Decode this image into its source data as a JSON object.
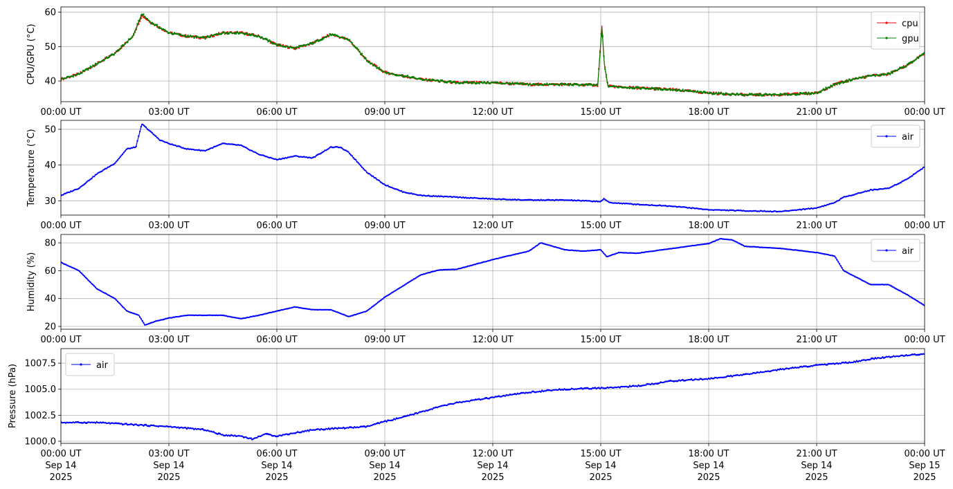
{
  "figure": {
    "x_tick_labels": [
      "00:00 UT",
      "03:00 UT",
      "06:00 UT",
      "09:00 UT",
      "12:00 UT",
      "15:00 UT",
      "18:00 UT",
      "21:00 UT",
      "00:00 UT"
    ],
    "x_date_labels": [
      [
        "Sep 14",
        "2025"
      ],
      [
        "Sep 14",
        "2025"
      ],
      [
        "Sep 14",
        "2025"
      ],
      [
        "Sep 14",
        "2025"
      ],
      [
        "Sep 14",
        "2025"
      ],
      [
        "Sep 14",
        "2025"
      ],
      [
        "Sep 14",
        "2025"
      ],
      [
        "Sep 14",
        "2025"
      ],
      [
        "Sep 15",
        "2025"
      ]
    ]
  },
  "chart_data": [
    {
      "type": "line",
      "ylabel": "CPU/GPU (°C)",
      "xlim": [
        "2025-09-14T00:00Z",
        "2025-09-15T00:00Z"
      ],
      "ylim": [
        34,
        61.5
      ],
      "yticks": [
        40,
        50,
        60
      ],
      "ytick_labels": [
        "40",
        "50",
        "60"
      ],
      "grid": true,
      "legend": "top-right",
      "series": [
        {
          "name": "cpu",
          "color": "#ff0000",
          "x": [
            "00:00",
            "00:30",
            "01:00",
            "01:30",
            "02:00",
            "02:15",
            "02:30",
            "03:00",
            "03:30",
            "04:00",
            "04:30",
            "05:00",
            "05:30",
            "06:00",
            "06:30",
            "07:00",
            "07:30",
            "08:00",
            "08:30",
            "09:00",
            "09:30",
            "10:00",
            "11:00",
            "12:00",
            "13:00",
            "14:00",
            "14:55",
            "15:02",
            "15:06",
            "15:12",
            "16:00",
            "17:00",
            "18:00",
            "19:00",
            "20:00",
            "21:00",
            "21:30",
            "22:00",
            "22:30",
            "23:00",
            "23:30",
            "24:00"
          ],
          "y": [
            40.5,
            42,
            45,
            48,
            53,
            59,
            57,
            54,
            53,
            52.5,
            54,
            54,
            53,
            50.5,
            49.5,
            51,
            53.5,
            52,
            46,
            42.5,
            41.5,
            40.5,
            39.5,
            39.5,
            39,
            39,
            38.8,
            56,
            45,
            38.5,
            38,
            37.5,
            36.5,
            36,
            36,
            36.5,
            39,
            40.5,
            41.5,
            42,
            44.5,
            48
          ]
        },
        {
          "name": "gpu",
          "color": "#008000",
          "x": [
            "00:00",
            "00:30",
            "01:00",
            "01:30",
            "02:00",
            "02:15",
            "02:30",
            "03:00",
            "03:30",
            "04:00",
            "04:30",
            "05:00",
            "05:30",
            "06:00",
            "06:30",
            "07:00",
            "07:30",
            "08:00",
            "08:30",
            "09:00",
            "09:30",
            "10:00",
            "11:00",
            "12:00",
            "13:00",
            "14:00",
            "14:55",
            "15:02",
            "15:06",
            "15:12",
            "16:00",
            "17:00",
            "18:00",
            "19:00",
            "20:00",
            "21:00",
            "21:30",
            "22:00",
            "22:30",
            "23:00",
            "23:30",
            "24:00"
          ],
          "y": [
            40.5,
            42,
            45,
            48,
            53,
            59.5,
            57,
            54,
            53,
            52.5,
            54,
            54,
            53,
            50.5,
            49.5,
            51,
            53.5,
            52,
            46,
            42.5,
            41.5,
            40.5,
            39.5,
            39.5,
            39,
            39,
            38.8,
            55.5,
            45,
            38.5,
            38,
            37.5,
            36.5,
            36,
            36,
            36.5,
            39,
            40.5,
            41.5,
            42,
            44.5,
            48
          ]
        }
      ]
    },
    {
      "type": "line",
      "ylabel": "Temperature (°C)",
      "xlim": [
        "2025-09-14T00:00Z",
        "2025-09-15T00:00Z"
      ],
      "ylim": [
        26,
        52.5
      ],
      "yticks": [
        30,
        40,
        50
      ],
      "ytick_labels": [
        "30",
        "40",
        "50"
      ],
      "grid": true,
      "legend": "top-right",
      "series": [
        {
          "name": "air",
          "color": "#0000ff",
          "x": [
            "00:00",
            "00:30",
            "01:00",
            "01:30",
            "01:50",
            "02:05",
            "02:15",
            "02:45",
            "03:00",
            "03:30",
            "04:00",
            "04:30",
            "05:00",
            "05:30",
            "06:00",
            "06:30",
            "07:00",
            "07:30",
            "07:45",
            "08:00",
            "08:30",
            "09:00",
            "09:30",
            "10:00",
            "11:00",
            "12:00",
            "13:00",
            "14:00",
            "15:00",
            "15:05",
            "15:15",
            "16:00",
            "17:00",
            "18:00",
            "19:00",
            "20:00",
            "21:00",
            "21:30",
            "21:45",
            "22:30",
            "23:00",
            "23:30",
            "24:00"
          ],
          "y": [
            31.5,
            33.5,
            37.5,
            40.5,
            44.5,
            45,
            51.5,
            47,
            46,
            44.5,
            44,
            46,
            45.5,
            43,
            41.5,
            42.5,
            42,
            45,
            45,
            43.5,
            38,
            34.5,
            32.5,
            31.5,
            31,
            30.5,
            30.2,
            30.2,
            29.8,
            30.5,
            29.5,
            29,
            28.5,
            27.5,
            27.2,
            27,
            28,
            29.5,
            31,
            33,
            33.5,
            36,
            39.5
          ]
        }
      ]
    },
    {
      "type": "line",
      "ylabel": "Humidity (%)",
      "xlim": [
        "2025-09-14T00:00Z",
        "2025-09-15T00:00Z"
      ],
      "ylim": [
        18,
        86
      ],
      "yticks": [
        20,
        40,
        60,
        80
      ],
      "ytick_labels": [
        "20",
        "40",
        "60",
        "80"
      ],
      "grid": true,
      "legend": "top-right",
      "series": [
        {
          "name": "air",
          "color": "#0000ff",
          "x": [
            "00:00",
            "00:30",
            "01:00",
            "01:30",
            "01:50",
            "02:10",
            "02:20",
            "02:40",
            "03:00",
            "03:30",
            "04:00",
            "04:30",
            "05:00",
            "05:30",
            "06:00",
            "06:30",
            "07:00",
            "07:30",
            "08:00",
            "08:30",
            "09:00",
            "09:30",
            "10:00",
            "10:30",
            "11:00",
            "12:00",
            "13:00",
            "13:20",
            "14:00",
            "14:30",
            "15:00",
            "15:10",
            "15:30",
            "16:00",
            "17:00",
            "18:00",
            "18:20",
            "18:40",
            "19:00",
            "20:00",
            "21:00",
            "21:30",
            "21:45",
            "22:30",
            "23:00",
            "23:30",
            "24:00"
          ],
          "y": [
            66,
            60,
            47,
            40,
            31,
            28,
            21,
            24,
            26,
            28,
            28,
            28,
            25.5,
            28,
            31,
            34,
            32,
            32,
            27,
            31,
            41,
            49,
            57,
            60.5,
            61,
            68,
            74,
            80,
            75,
            74,
            75,
            70,
            73,
            72.5,
            76,
            79.5,
            83,
            82,
            77.5,
            76,
            73,
            70.5,
            60,
            50,
            50,
            43,
            35
          ]
        }
      ]
    },
    {
      "type": "line",
      "ylabel": "Pressure (hPa)",
      "xlim": [
        "2025-09-14T00:00Z",
        "2025-09-15T00:00Z"
      ],
      "ylim": [
        999.8,
        1008.9
      ],
      "yticks": [
        1000.0,
        1002.5,
        1005.0,
        1007.5
      ],
      "ytick_labels": [
        "1000.0",
        "1002.5",
        "1005.0",
        "1007.5"
      ],
      "grid": true,
      "legend": "top-left",
      "series": [
        {
          "name": "air",
          "color": "#0000ff",
          "x": [
            "00:00",
            "01:00",
            "02:00",
            "03:00",
            "04:00",
            "04:30",
            "05:00",
            "05:20",
            "05:40",
            "06:00",
            "06:30",
            "07:00",
            "07:30",
            "08:00",
            "08:30",
            "09:00",
            "09:30",
            "10:00",
            "10:30",
            "11:00",
            "12:00",
            "13:00",
            "14:00",
            "15:00",
            "16:00",
            "17:00",
            "18:00",
            "19:00",
            "20:00",
            "21:00",
            "22:00",
            "22:30",
            "23:00",
            "24:00"
          ],
          "y": [
            1001.8,
            1001.8,
            1001.6,
            1001.4,
            1001.1,
            1000.6,
            1000.5,
            1000.2,
            1000.7,
            1000.5,
            1000.8,
            1001.1,
            1001.2,
            1001.3,
            1001.4,
            1001.9,
            1002.3,
            1002.8,
            1003.3,
            1003.7,
            1004.2,
            1004.7,
            1005.0,
            1005.1,
            1005.3,
            1005.8,
            1006.0,
            1006.4,
            1006.9,
            1007.3,
            1007.6,
            1007.9,
            1008.1,
            1008.4
          ]
        }
      ]
    }
  ]
}
